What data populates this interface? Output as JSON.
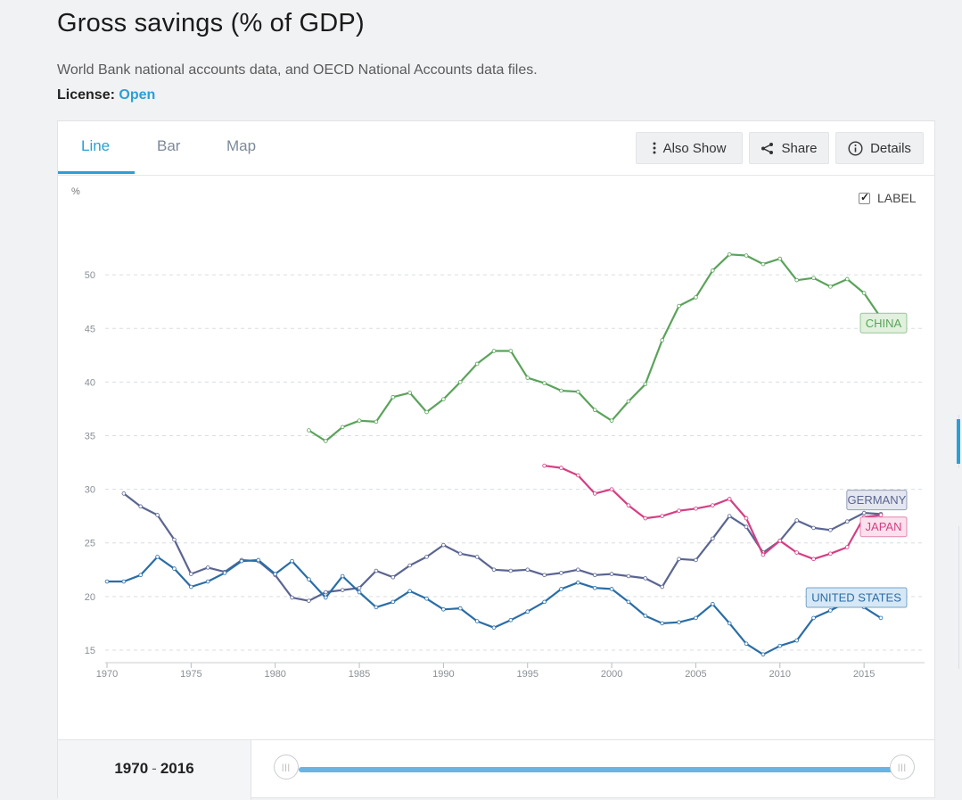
{
  "header": {
    "title": "Gross savings (% of GDP)",
    "source": "World Bank national accounts data, and OECD National Accounts data files.",
    "license_label": "License:",
    "license_value": "Open"
  },
  "tabs": [
    {
      "label": "Line",
      "active": true
    },
    {
      "label": "Bar",
      "active": false
    },
    {
      "label": "Map",
      "active": false
    }
  ],
  "toolbar": {
    "also_show": "Also Show",
    "share": "Share",
    "details": "Details"
  },
  "label_toggle": {
    "label": "LABEL",
    "checked": true
  },
  "footer": {
    "range_start": "1970",
    "range_end": "2016",
    "separator": "-"
  },
  "colors": {
    "accent": "#2a9fd8",
    "china": "#5ba35b",
    "germany": "#5a6591",
    "japan": "#d43f84",
    "united_states": "#2a6da6"
  },
  "chart_data": {
    "type": "line",
    "ylabel": "%",
    "xlim": [
      1970,
      2016
    ],
    "ylim": [
      14,
      56
    ],
    "xticks": [
      1970,
      1975,
      1980,
      1985,
      1990,
      1995,
      2000,
      2005,
      2010,
      2015
    ],
    "yticks": [
      15,
      20,
      25,
      30,
      35,
      40,
      45,
      50
    ],
    "grid": true,
    "series": [
      {
        "name": "CHINA",
        "color": "#5ba35b",
        "label_fill": "#e1f1de",
        "x": [
          1982,
          1983,
          1984,
          1985,
          1986,
          1987,
          1988,
          1989,
          1990,
          1991,
          1992,
          1993,
          1994,
          1995,
          1996,
          1997,
          1998,
          1999,
          2000,
          2001,
          2002,
          2003,
          2004,
          2005,
          2006,
          2007,
          2008,
          2009,
          2010,
          2011,
          2012,
          2013,
          2014,
          2015,
          2016
        ],
        "y": [
          35.5,
          34.5,
          35.8,
          36.4,
          36.3,
          38.6,
          39.0,
          37.2,
          38.4,
          40.0,
          41.7,
          42.9,
          42.9,
          40.4,
          39.9,
          39.2,
          39.1,
          37.4,
          36.4,
          38.2,
          39.8,
          43.9,
          47.1,
          47.9,
          50.4,
          51.9,
          51.8,
          51.0,
          51.5,
          49.5,
          49.7,
          48.9,
          49.6,
          48.3,
          46.0
        ]
      },
      {
        "name": "GERMANY",
        "color": "#5a6591",
        "label_fill": "#e5e7f0",
        "x": [
          1971,
          1972,
          1973,
          1974,
          1975,
          1976,
          1977,
          1978,
          1979,
          1980,
          1981,
          1982,
          1983,
          1984,
          1985,
          1986,
          1987,
          1988,
          1989,
          1990,
          1991,
          1992,
          1993,
          1994,
          1995,
          1996,
          1997,
          1998,
          1999,
          2000,
          2001,
          2002,
          2003,
          2004,
          2005,
          2006,
          2007,
          2008,
          2009,
          2010,
          2011,
          2012,
          2013,
          2014,
          2015,
          2016
        ],
        "y": [
          29.6,
          28.4,
          27.6,
          25.3,
          22.1,
          22.7,
          22.3,
          23.4,
          23.3,
          22.0,
          19.9,
          19.6,
          20.4,
          20.6,
          20.8,
          22.4,
          21.8,
          22.9,
          23.7,
          24.8,
          24.0,
          23.7,
          22.5,
          22.4,
          22.5,
          22.0,
          22.2,
          22.5,
          22.0,
          22.1,
          21.9,
          21.7,
          20.9,
          23.5,
          23.4,
          25.4,
          27.5,
          26.5,
          24.1,
          25.2,
          27.1,
          26.4,
          26.2,
          27.0,
          27.8,
          27.7
        ]
      },
      {
        "name": "JAPAN",
        "color": "#d43f84",
        "label_fill": "#fbe1ed",
        "x": [
          1996,
          1997,
          1998,
          1999,
          2000,
          2001,
          2002,
          2003,
          2004,
          2005,
          2006,
          2007,
          2008,
          2009,
          2010,
          2011,
          2012,
          2013,
          2014,
          2015,
          2016
        ],
        "y": [
          32.2,
          32.0,
          31.3,
          29.6,
          30.0,
          28.5,
          27.3,
          27.5,
          28.0,
          28.2,
          28.5,
          29.1,
          27.3,
          23.9,
          25.2,
          24.1,
          23.5,
          24.0,
          24.6,
          27.4,
          27.6
        ]
      },
      {
        "name": "UNITED STATES",
        "color": "#2a6da6",
        "label_fill": "#d6e8f6",
        "x": [
          1970,
          1971,
          1972,
          1973,
          1974,
          1975,
          1976,
          1977,
          1978,
          1979,
          1980,
          1981,
          1982,
          1983,
          1984,
          1985,
          1986,
          1987,
          1988,
          1989,
          1990,
          1991,
          1992,
          1993,
          1994,
          1995,
          1996,
          1997,
          1998,
          1999,
          2000,
          2001,
          2002,
          2003,
          2004,
          2005,
          2006,
          2007,
          2008,
          2009,
          2010,
          2011,
          2012,
          2013,
          2014,
          2015,
          2016
        ],
        "y": [
          21.4,
          21.4,
          22.0,
          23.7,
          22.6,
          20.9,
          21.4,
          22.2,
          23.3,
          23.4,
          22.1,
          23.3,
          21.6,
          19.9,
          21.9,
          20.4,
          19.0,
          19.5,
          20.5,
          19.8,
          18.8,
          18.9,
          17.7,
          17.1,
          17.8,
          18.6,
          19.5,
          20.7,
          21.3,
          20.8,
          20.7,
          19.5,
          18.2,
          17.5,
          17.6,
          18.0,
          19.3,
          17.5,
          15.6,
          14.6,
          15.4,
          15.9,
          18.0,
          18.7,
          19.5,
          19.0,
          18.0
        ]
      }
    ]
  }
}
